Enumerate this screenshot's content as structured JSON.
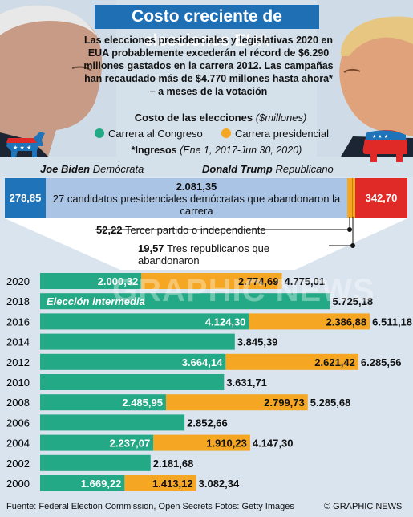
{
  "title": "Costo creciente de elecciones EUA",
  "intro": "Las elecciones presidenciales y legislativas 2020 en EUA probablemente excederán el récord de $6.290 millones gastados en la carrera 2012. Las campañas han recaudado más de $4.770 millones hasta ahora* – a meses de la votación",
  "legend": {
    "title": "Costo de las elecciones",
    "unit": "($millones)",
    "congress": "Carrera al Congreso",
    "presidential": "Carrera presidencial"
  },
  "footnote": {
    "label": "*Ingresos",
    "range": "(Ene 1, 2017-Jun 30, 2020)"
  },
  "candidates": {
    "biden": {
      "name": "Joe Biden",
      "party": "Demócrata"
    },
    "trump": {
      "name": "Donald Trump",
      "party": "Republicano"
    }
  },
  "logos": {
    "dem": "donkey-icon",
    "rep": "elephant-icon"
  },
  "colors": {
    "congress": "#23a985",
    "presidential": "#f5a623",
    "dem": "#1e73b9",
    "rep": "#e02a27",
    "title": "#1f6fb5"
  },
  "breakdown": {
    "biden": "278,85",
    "dems_value": "2.081,35",
    "dems_text": "27 candidatos presidenciales demócratas que abandonaron la carrera",
    "trump": "342,70",
    "third_value": "52,22",
    "third_text": "Tercer partido o independiente",
    "rep_value": "19,57",
    "rep_text": "Tres republicanos que abandonaron"
  },
  "watermark": "GRAPHIC NEWS",
  "source": "Fuente: Federal Election Commission, Open Secrets    Fotos: Getty Images",
  "credit": "© GRAPHIC NEWS",
  "chart_data": {
    "type": "bar",
    "orientation": "horizontal",
    "stacked": true,
    "categories": [
      "2020",
      "2018",
      "2016",
      "2014",
      "2012",
      "2010",
      "2008",
      "2006",
      "2004",
      "2002",
      "2000"
    ],
    "series": [
      {
        "name": "Carrera al Congreso",
        "values": [
          2000.32,
          5725.18,
          4124.3,
          3845.39,
          3664.14,
          3631.71,
          2485.95,
          2852.66,
          2237.07,
          2181.68,
          1669.22
        ]
      },
      {
        "name": "Carrera presidencial",
        "values": [
          2774.69,
          0,
          2386.88,
          0,
          2621.42,
          0,
          2799.73,
          0,
          1910.23,
          0,
          1413.12
        ]
      }
    ],
    "labels": {
      "congress": [
        "2.000,32",
        "",
        "4.124,30",
        "",
        "3.664,14",
        "",
        "2.485,95",
        "",
        "2.237,07",
        "",
        "1.669,22"
      ],
      "presidential": [
        "2.774,69",
        "",
        "2.386,88",
        "",
        "2.621,42",
        "",
        "2.799,73",
        "",
        "1.910,23",
        "",
        "1.413,12"
      ],
      "totals": [
        "4.775,01",
        "5.725,18",
        "6.511,18",
        "3.845,39",
        "6.285,56",
        "3.631,71",
        "5.285,68",
        "2.852,66",
        "4.147,30",
        "2.181,68",
        "3.082,34"
      ]
    },
    "annotation": "Elección intermedia",
    "xlim": [
      0,
      7000
    ]
  }
}
